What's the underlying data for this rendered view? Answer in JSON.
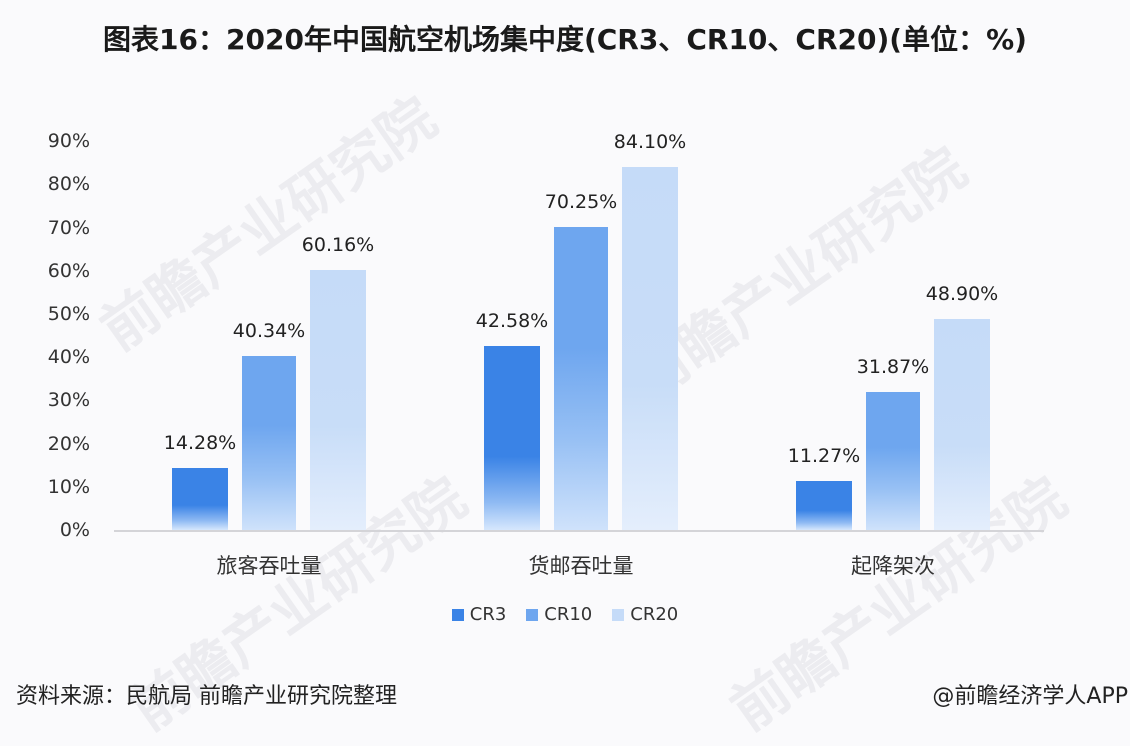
{
  "title": "图表16：2020年中国航空机场集中度(CR3、CR10、CR20)(单位：%)",
  "y_axis": {
    "ticks": [
      "0%",
      "10%",
      "20%",
      "30%",
      "40%",
      "50%",
      "60%",
      "70%",
      "80%",
      "90%"
    ]
  },
  "categories": [
    "旅客吞吐量",
    "货邮吞吐量",
    "起降架次"
  ],
  "series": [
    {
      "name": "CR3",
      "color": "#3a83e6",
      "values": [
        14.28,
        42.58,
        11.27
      ],
      "labels": [
        "14.28%",
        "42.58%",
        "11.27%"
      ]
    },
    {
      "name": "CR10",
      "color": "#6ea6ef",
      "values": [
        40.34,
        70.25,
        31.87
      ],
      "labels": [
        "40.34%",
        "70.25%",
        "31.87%"
      ]
    },
    {
      "name": "CR20",
      "color": "#c5dbf8",
      "values": [
        60.16,
        84.1,
        48.9
      ],
      "labels": [
        "60.16%",
        "84.10%",
        "48.90%"
      ]
    }
  ],
  "legend": [
    "CR3",
    "CR10",
    "CR20"
  ],
  "footer": {
    "source": "资料来源：民航局 前瞻产业研究院整理",
    "credit": "@前瞻经济学人APP"
  },
  "watermark": "前瞻产业研究院",
  "chart_data": {
    "type": "bar",
    "title": "图表16：2020年中国航空机场集中度(CR3、CR10、CR20)(单位：%)",
    "categories": [
      "旅客吞吐量",
      "货邮吞吐量",
      "起降架次"
    ],
    "series": [
      {
        "name": "CR3",
        "values": [
          14.28,
          42.58,
          11.27
        ]
      },
      {
        "name": "CR10",
        "values": [
          40.34,
          70.25,
          31.87
        ]
      },
      {
        "name": "CR20",
        "values": [
          60.16,
          84.1,
          48.9
        ]
      }
    ],
    "xlabel": "",
    "ylabel": "",
    "ylim": [
      0,
      90
    ],
    "yticks": [
      "0%",
      "10%",
      "20%",
      "30%",
      "40%",
      "50%",
      "60%",
      "70%",
      "80%",
      "90%"
    ],
    "grid": false,
    "legend_position": "bottom",
    "data_labels": true
  }
}
